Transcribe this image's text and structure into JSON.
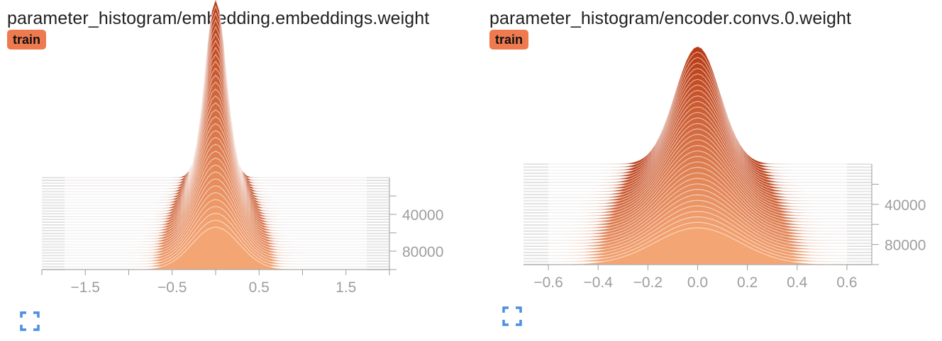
{
  "charts": [
    {
      "title": "parameter_histogram/embedding.embeddings.weight",
      "run_label": "train",
      "run_color": "#ef7a4f",
      "expand_icon": "fullscreen-icon"
    },
    {
      "title": "parameter_histogram/encoder.convs.0.weight",
      "run_label": "train",
      "run_color": "#ef7a4f",
      "expand_icon": "fullscreen-icon"
    }
  ],
  "chart_data": [
    {
      "type": "area",
      "mode": "offset-histogram",
      "title": "parameter_histogram/embedding.embeddings.weight",
      "series_label": "train",
      "x_ticks": [
        "−1.5",
        "−0.5",
        "0.5",
        "1.5"
      ],
      "x_tick_values": [
        -1.5,
        -0.5,
        0.5,
        1.5
      ],
      "xlim": [
        -2.0,
        2.0
      ],
      "y_axis": "step",
      "y_ticks": [
        "40000",
        "80000"
      ],
      "y_tick_values": [
        40000,
        80000
      ],
      "ylim": [
        0,
        100000
      ],
      "color_oldest": "#b83a14",
      "color_newest": "#f4a574",
      "histogram_center": 0.0,
      "histogram_peak_count_newest": 1.0,
      "histogram_peak_count_oldest": 4.2,
      "histogram_width_newest": 0.27,
      "histogram_width_oldest": 0.12
    },
    {
      "type": "area",
      "mode": "offset-histogram",
      "title": "parameter_histogram/encoder.convs.0.weight",
      "series_label": "train",
      "x_ticks": [
        "−0.6",
        "−0.4",
        "−0.2",
        "0.0",
        "0.2",
        "0.4",
        "0.6"
      ],
      "x_tick_values": [
        -0.6,
        -0.4,
        -0.2,
        0.0,
        0.2,
        0.4,
        0.6
      ],
      "xlim": [
        -0.7,
        0.7
      ],
      "y_axis": "step",
      "y_ticks": [
        "40000",
        "80000"
      ],
      "y_tick_values": [
        40000,
        80000
      ],
      "ylim": [
        0,
        100000
      ],
      "color_oldest": "#b83a14",
      "color_newest": "#f4a574",
      "histogram_center": 0.0,
      "histogram_peak_count_newest": 1.0,
      "histogram_peak_count_oldest": 3.2,
      "histogram_width_newest": 0.17,
      "histogram_width_oldest": 0.09
    }
  ]
}
